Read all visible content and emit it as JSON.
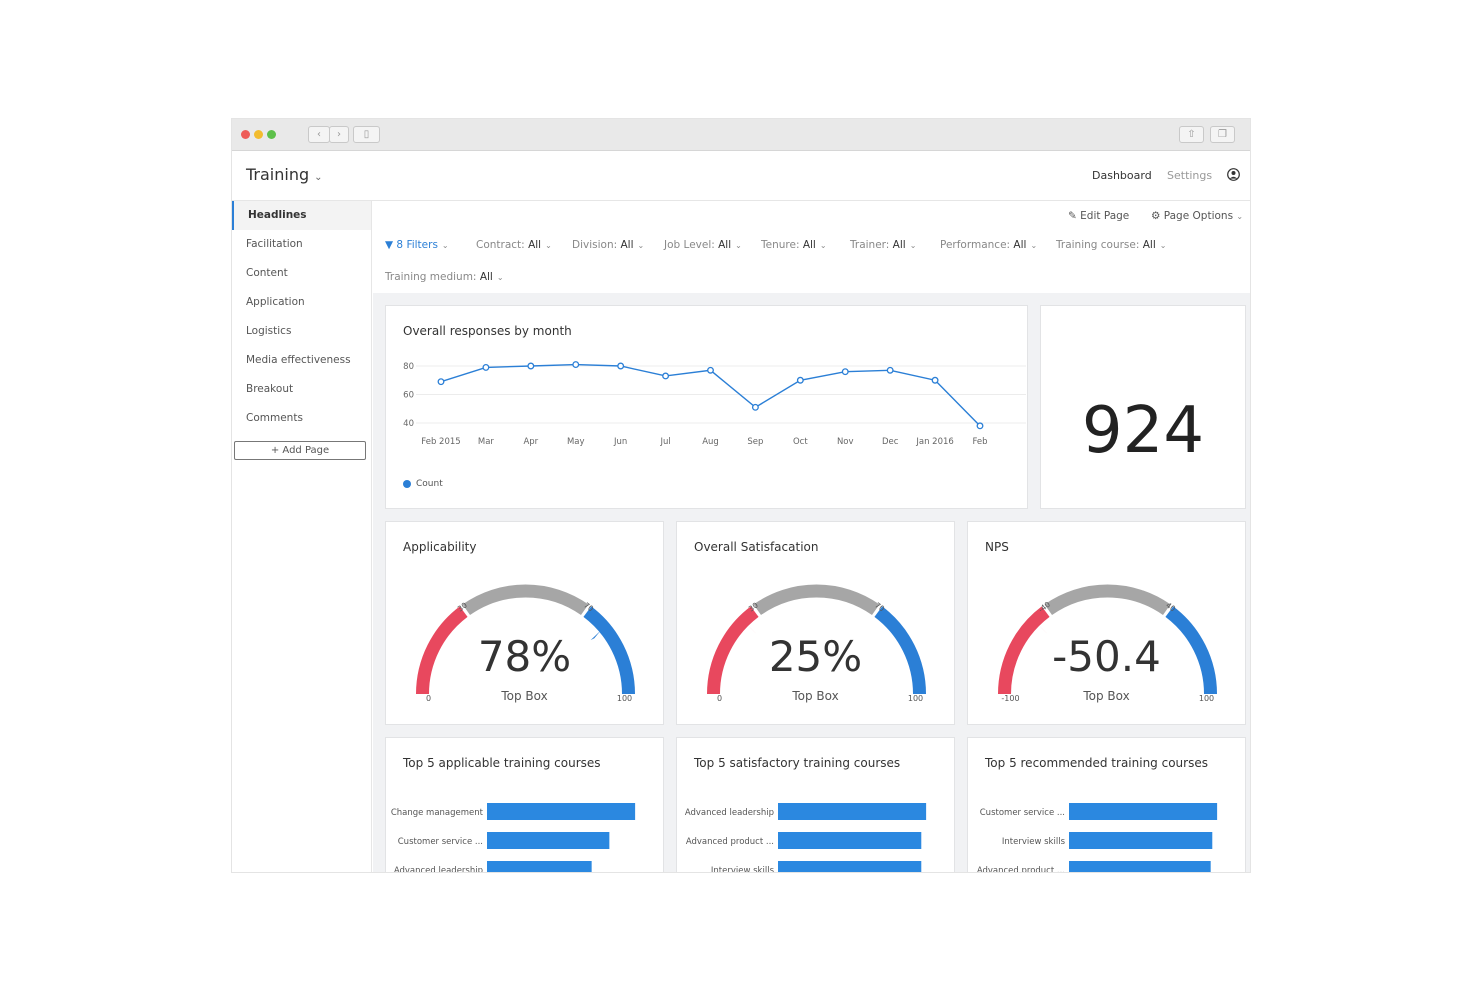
{
  "app": {
    "title": "Training"
  },
  "nav": {
    "dashboard": "Dashboard",
    "settings": "Settings"
  },
  "sidebar": {
    "items": [
      "Headlines",
      "Facilitation",
      "Content",
      "Application",
      "Logistics",
      "Media effectiveness",
      "Breakout",
      "Comments"
    ],
    "add_page": "+ Add Page"
  },
  "page_actions": {
    "edit": "Edit Page",
    "options": "Page Options"
  },
  "filters": {
    "count_label": "8 Filters",
    "items": [
      {
        "label": "Contract:",
        "value": "All"
      },
      {
        "label": "Division:",
        "value": "All"
      },
      {
        "label": "Job Level:",
        "value": "All"
      },
      {
        "label": "Tenure:",
        "value": "All"
      },
      {
        "label": "Trainer:",
        "value": "All"
      },
      {
        "label": "Performance:",
        "value": "All"
      },
      {
        "label": "Training course:",
        "value": "All"
      },
      {
        "label": "Training medium:",
        "value": "All"
      }
    ]
  },
  "line_card": {
    "title": "Overall responses by month",
    "legend": "Count"
  },
  "kpi": {
    "value": "924"
  },
  "gauges": [
    {
      "title": "Applicability",
      "value": "78%",
      "sub": "Top Box",
      "min": "0",
      "max": "100",
      "t1": "30",
      "t2": "70"
    },
    {
      "title": "Overall Satisfacation",
      "value": "25%",
      "sub": "Top Box",
      "min": "0",
      "max": "100",
      "t1": "30",
      "t2": "70"
    },
    {
      "title": "NPS",
      "value": "-50.4",
      "sub": "Top Box",
      "min": "-100",
      "max": "100",
      "t1": "-40",
      "t2": "40"
    }
  ],
  "bar_cards": [
    {
      "title": "Top 5 applicable training courses",
      "bars": [
        {
          "label": "Change management",
          "value": 0.92
        },
        {
          "label": "Customer service ...",
          "value": 0.76
        },
        {
          "label": "Advanced leadership",
          "value": 0.65
        }
      ]
    },
    {
      "title": "Top 5 satisfactory training courses",
      "bars": [
        {
          "label": "Advanced leadership",
          "value": 0.92
        },
        {
          "label": "Advanced product ...",
          "value": 0.89
        },
        {
          "label": "Interview skills",
          "value": 0.89
        }
      ]
    },
    {
      "title": "Top 5 recommended training courses",
      "bars": [
        {
          "label": "Customer service ...",
          "value": 0.92
        },
        {
          "label": "Interview skills",
          "value": 0.89
        },
        {
          "label": "Advanced product ...",
          "value": 0.88
        }
      ]
    }
  ],
  "chart_data": {
    "type": "line",
    "x": [
      "Feb 2015",
      "Mar",
      "Apr",
      "May",
      "Jun",
      "Jul",
      "Aug",
      "Sep",
      "Oct",
      "Nov",
      "Dec",
      "Jan 2016",
      "Feb"
    ],
    "series": [
      {
        "name": "Count",
        "values": [
          69,
          79,
          80,
          81,
          80,
          73,
          77,
          51,
          70,
          76,
          77,
          70,
          38
        ]
      }
    ],
    "yticks": [
      40,
      60,
      80
    ],
    "ylim": [
      40,
      80
    ],
    "color": "#2b7fd6"
  },
  "gauge_values": [
    0.78,
    0.25,
    0.25
  ],
  "colors": {
    "accent": "#2b7fd6",
    "red": "#e8485e",
    "grey": "#a6a6a6",
    "bar": "#2b88e0"
  }
}
